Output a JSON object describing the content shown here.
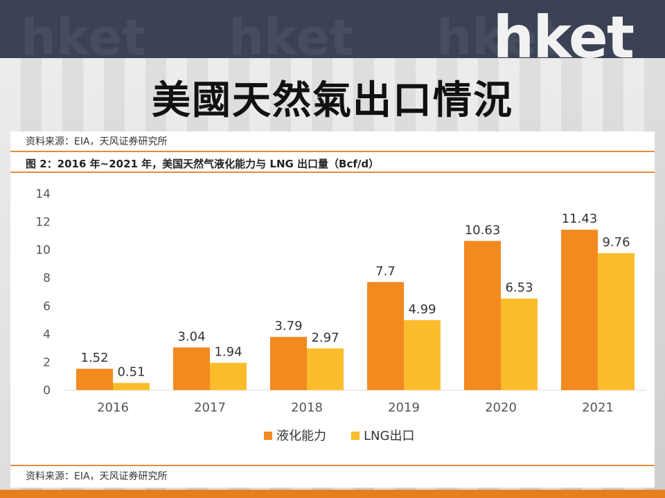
{
  "header": {
    "logo": "hket",
    "title": "美國天然氣出口情況"
  },
  "figure": {
    "source_top": "资料来源：EIA，天风证券研究所",
    "caption": "图 2：2016 年~2021 年，美国天然气液化能力与 LNG 出口量（Bcf/d）",
    "source_bottom": "资料来源：EIA，天风证券研究所"
  },
  "colors": {
    "header_bar": "#3b4256",
    "accent": "#e87f1f",
    "series1": "#f28a20",
    "series2": "#fbbc2c"
  },
  "chart_data": {
    "type": "bar",
    "categories": [
      "2016",
      "2017",
      "2018",
      "2019",
      "2020",
      "2021"
    ],
    "series": [
      {
        "name": "液化能力",
        "values": [
          1.52,
          3.04,
          3.79,
          7.7,
          10.63,
          11.43
        ],
        "labels": [
          "1.52",
          "3.04",
          "3.79",
          "7.7",
          "10.63",
          "11.43"
        ]
      },
      {
        "name": "LNG出口",
        "values": [
          0.51,
          1.94,
          2.97,
          4.99,
          6.53,
          9.76
        ],
        "labels": [
          "0.51",
          "1.94",
          "2.97",
          "4.99",
          "6.53",
          "9.76"
        ]
      }
    ],
    "yticks": [
      "0",
      "2",
      "4",
      "6",
      "8",
      "10",
      "12",
      "14"
    ],
    "ylim": [
      0,
      14
    ],
    "grid": false,
    "legend": "bottom-center"
  }
}
